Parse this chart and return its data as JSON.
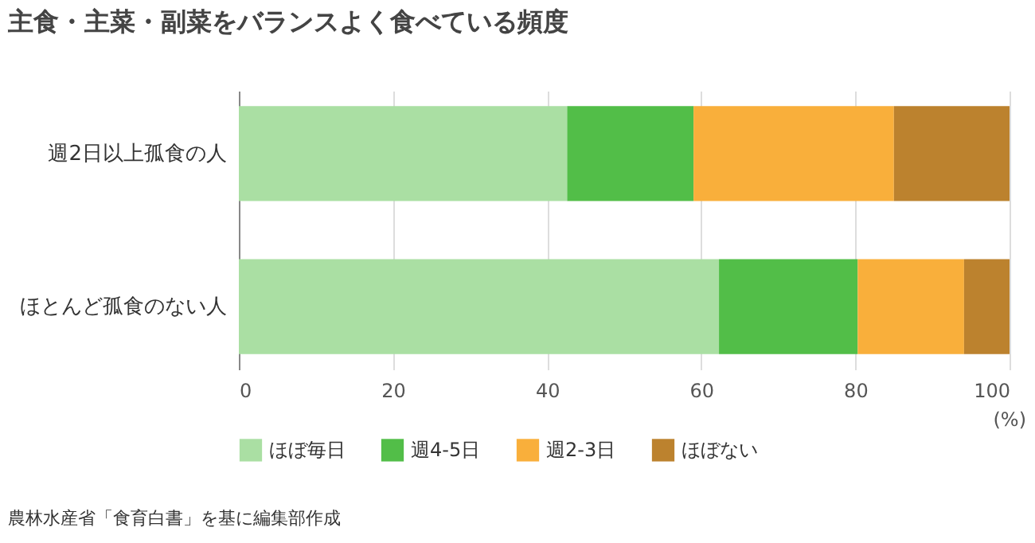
{
  "chart_data": {
    "type": "bar",
    "title": "主食・主菜・副菜をバランスよく食べている頻度",
    "orientation": "horizontal",
    "stacked": true,
    "categories": [
      "週2日以上孤食の人",
      "ほとんど孤食のない人"
    ],
    "series": [
      {
        "name": "ほぼ毎日",
        "color": "#aadfa3",
        "values": [
          42.6,
          62.3
        ]
      },
      {
        "name": "週4-5日",
        "color": "#52be48",
        "values": [
          16.4,
          18.0
        ]
      },
      {
        "name": "週2-3日",
        "color": "#f9af3b",
        "values": [
          26.0,
          13.8
        ]
      },
      {
        "name": "ほぼない",
        "color": "#bc822e",
        "values": [
          15.0,
          5.9
        ]
      }
    ],
    "xlim": [
      0,
      100
    ],
    "xticks": [
      0,
      20,
      40,
      60,
      80,
      100
    ],
    "xlabel": "(%)",
    "grid": "x",
    "legend": "bottom",
    "annotations": [
      "農林水産省「食育白書」を基に編集部作成"
    ]
  }
}
